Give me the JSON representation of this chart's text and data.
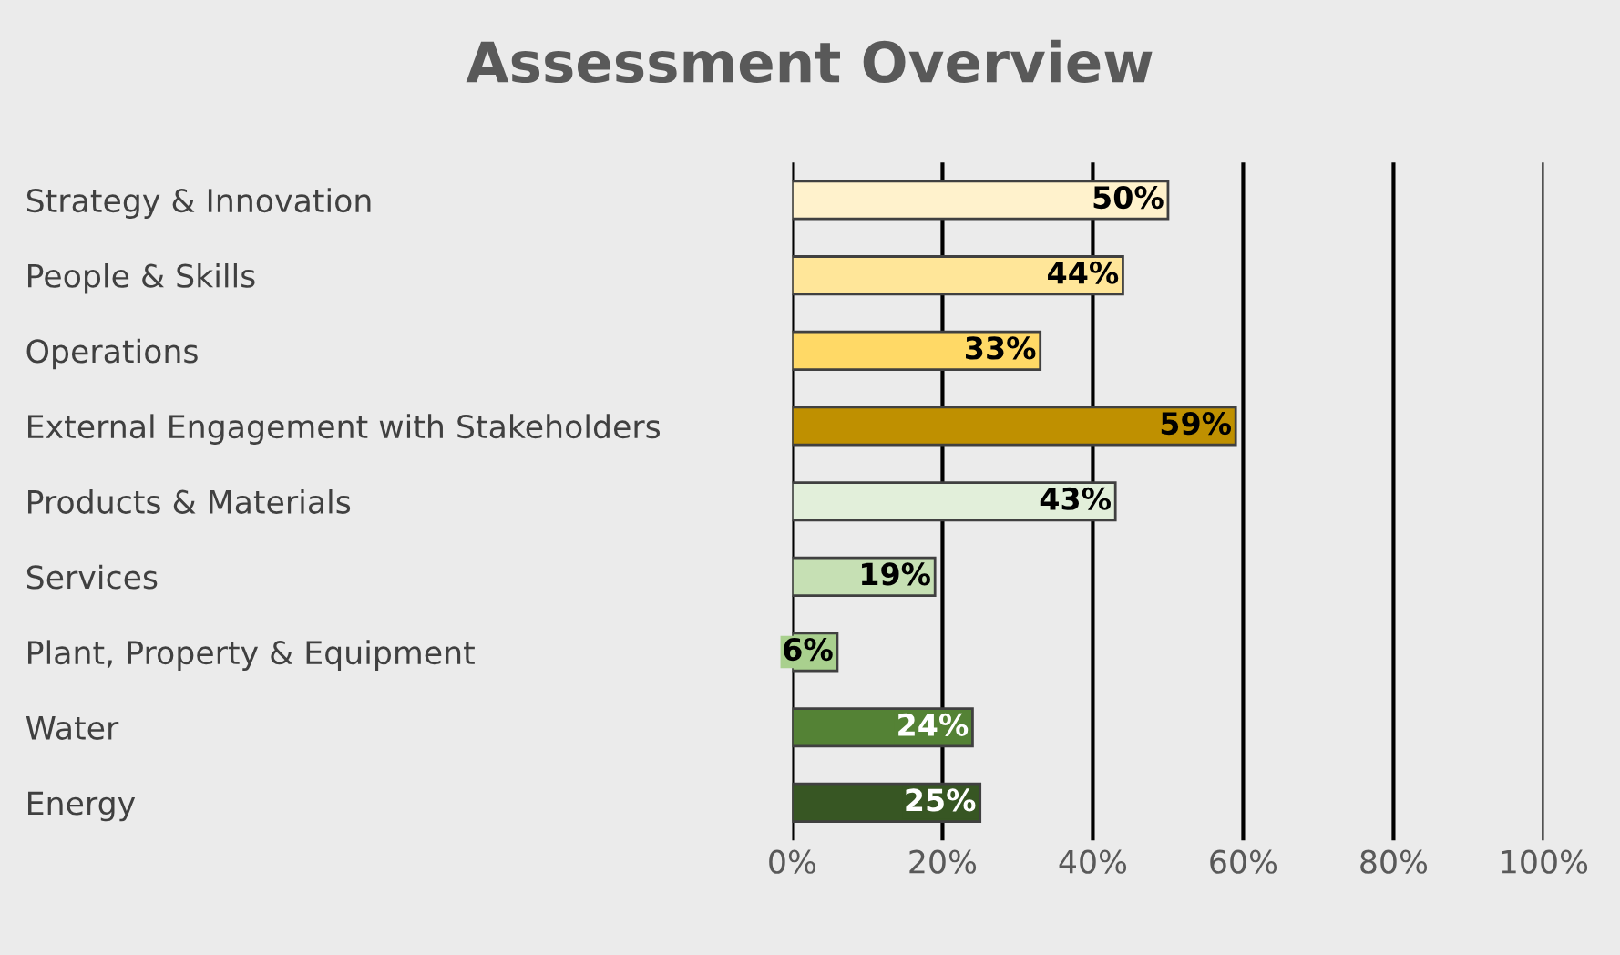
{
  "chart_data": {
    "type": "bar",
    "orientation": "horizontal",
    "title": "Assessment Overview",
    "categories": [
      "Strategy & Innovation",
      "People & Skills",
      "Operations",
      "External Engagement with Stakeholders",
      "Products & Materials",
      "Services",
      "Plant, Property & Equipment",
      "Water",
      "Energy"
    ],
    "values": [
      50,
      44,
      33,
      59,
      43,
      19,
      6,
      24,
      25
    ],
    "value_labels": [
      "50%",
      "44%",
      "33%",
      "59%",
      "43%",
      "19%",
      "6%",
      "24%",
      "25%"
    ],
    "colors": [
      "#fff2cc",
      "#ffe699",
      "#ffd966",
      "#bf9000",
      "#e2efda",
      "#c6e0b4",
      "#a9d08e",
      "#548235",
      "#375623"
    ],
    "xlim": [
      0,
      100
    ],
    "xticks": [
      {
        "value": 0,
        "label": "0%"
      },
      {
        "value": 20,
        "label": "20%"
      },
      {
        "value": 40,
        "label": "40%"
      },
      {
        "value": 60,
        "label": "60%"
      },
      {
        "value": 80,
        "label": "80%"
      },
      {
        "value": 100,
        "label": "100%"
      }
    ],
    "grid": "x"
  }
}
